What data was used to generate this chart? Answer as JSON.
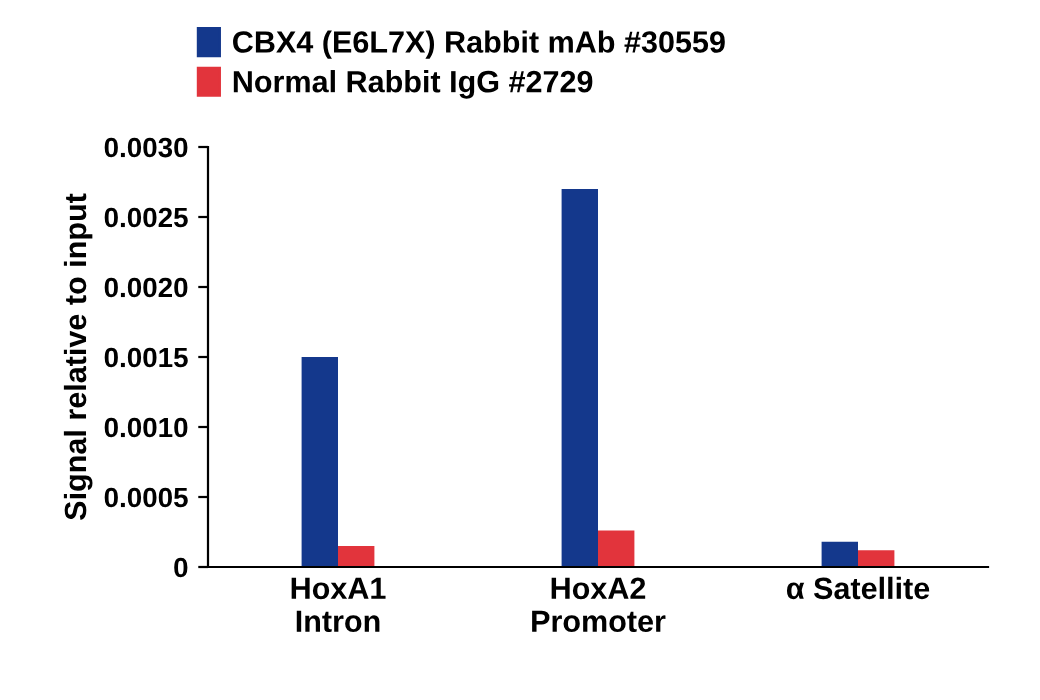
{
  "chart_data": {
    "type": "bar",
    "ylabel": "Signal relative to input",
    "categories": [
      "HoxA1\nIntron",
      "HoxA2\nPromoter",
      "α Satellite"
    ],
    "series": [
      {
        "name": "CBX4 (E6L7X) Rabbit mAb #30559",
        "color": "#14388c",
        "values": [
          0.0015,
          0.0027,
          0.00018
        ]
      },
      {
        "name": "Normal Rabbit IgG #2729",
        "color": "#e2343c",
        "values": [
          0.00015,
          0.00026,
          0.00012
        ]
      }
    ],
    "ylim": [
      0,
      0.003
    ],
    "yticks": [
      0,
      0.0005,
      {
        "value": 0.001,
        "label": "0.0010"
      },
      0.0015,
      {
        "value": 0.002,
        "label": "0.0020"
      },
      0.0025,
      {
        "value": 0.003,
        "label": "0.0030"
      }
    ],
    "grid": false,
    "legend": "top left"
  }
}
